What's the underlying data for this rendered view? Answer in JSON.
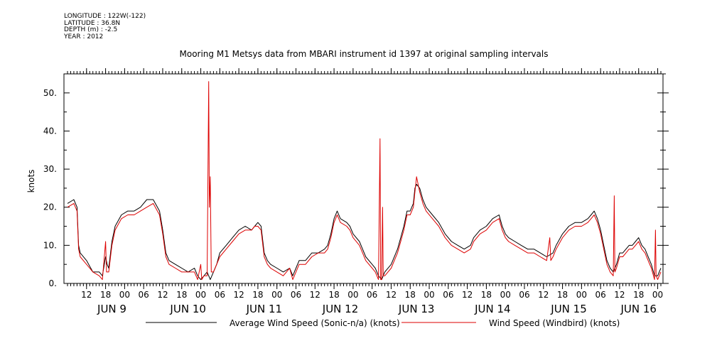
{
  "header": {
    "longitude": "LONGITUDE : 122W(-122)",
    "latitude": "LATITUDE : 36.8N",
    "depth": "DEPTH (m) : -2.5",
    "year": "YEAR : 2012"
  },
  "chart_data": {
    "type": "line",
    "title": "Mooring M1 Metsys data from MBARI instrument id 1397 at original sampling intervals",
    "ylabel": "knots",
    "ylim": [
      0,
      55
    ],
    "xlim_hours": [
      0,
      187
    ],
    "yticks": [
      0.0,
      10.0,
      20.0,
      30.0,
      40.0,
      50.0
    ],
    "yticklabels": [
      "0.",
      "10.",
      "20.",
      "30.",
      "40.",
      "50."
    ],
    "hour_ticks": [
      {
        "h": 6,
        "label": "12"
      },
      {
        "h": 12,
        "label": "18"
      },
      {
        "h": 18,
        "label": "00"
      },
      {
        "h": 24,
        "label": "06"
      },
      {
        "h": 30,
        "label": "12"
      },
      {
        "h": 36,
        "label": "18"
      },
      {
        "h": 42,
        "label": "00"
      },
      {
        "h": 48,
        "label": "06"
      },
      {
        "h": 54,
        "label": "12"
      },
      {
        "h": 60,
        "label": "18"
      },
      {
        "h": 66,
        "label": "00"
      },
      {
        "h": 72,
        "label": "06"
      },
      {
        "h": 78,
        "label": "12"
      },
      {
        "h": 84,
        "label": "18"
      },
      {
        "h": 90,
        "label": "00"
      },
      {
        "h": 96,
        "label": "06"
      },
      {
        "h": 102,
        "label": "12"
      },
      {
        "h": 108,
        "label": "18"
      },
      {
        "h": 114,
        "label": "00"
      },
      {
        "h": 120,
        "label": "06"
      },
      {
        "h": 126,
        "label": "12"
      },
      {
        "h": 132,
        "label": "18"
      },
      {
        "h": 138,
        "label": "00"
      },
      {
        "h": 144,
        "label": "06"
      },
      {
        "h": 150,
        "label": "12"
      },
      {
        "h": 156,
        "label": "18"
      },
      {
        "h": 162,
        "label": "00"
      },
      {
        "h": 168,
        "label": "06"
      },
      {
        "h": 174,
        "label": "12"
      },
      {
        "h": 180,
        "label": "18"
      },
      {
        "h": 186,
        "label": "00"
      }
    ],
    "date_labels": [
      {
        "h": 14,
        "label": "JUN  9"
      },
      {
        "h": 38,
        "label": "JUN 10"
      },
      {
        "h": 62,
        "label": "JUN 11"
      },
      {
        "h": 86,
        "label": "JUN 12"
      },
      {
        "h": 110,
        "label": "JUN 13"
      },
      {
        "h": 134,
        "label": "JUN 14"
      },
      {
        "h": 158,
        "label": "JUN 15"
      },
      {
        "h": 180,
        "label": "JUN 16"
      }
    ],
    "series": [
      {
        "name": "Average Wind Speed (Sonic-n/a) (knots)",
        "color": "#000000",
        "points": [
          [
            0,
            21
          ],
          [
            2,
            22
          ],
          [
            3,
            20
          ],
          [
            3.5,
            10
          ],
          [
            4,
            8
          ],
          [
            6,
            6
          ],
          [
            8,
            3
          ],
          [
            10,
            3
          ],
          [
            11,
            2
          ],
          [
            12,
            7
          ],
          [
            12.5,
            5
          ],
          [
            13,
            4
          ],
          [
            14,
            11
          ],
          [
            15,
            15
          ],
          [
            17,
            18
          ],
          [
            19,
            19
          ],
          [
            21,
            19
          ],
          [
            23,
            20
          ],
          [
            25,
            22
          ],
          [
            27,
            22
          ],
          [
            29,
            19
          ],
          [
            30,
            14
          ],
          [
            31,
            8
          ],
          [
            32,
            6
          ],
          [
            34,
            5
          ],
          [
            36,
            4
          ],
          [
            38,
            3
          ],
          [
            40,
            4
          ],
          [
            41,
            2
          ],
          [
            42,
            1
          ],
          [
            43,
            2
          ],
          [
            44,
            3
          ],
          [
            45,
            1
          ],
          [
            46,
            3
          ],
          [
            47,
            5
          ],
          [
            48,
            8
          ],
          [
            50,
            10
          ],
          [
            52,
            12
          ],
          [
            54,
            14
          ],
          [
            56,
            15
          ],
          [
            58,
            14
          ],
          [
            59,
            15
          ],
          [
            60,
            16
          ],
          [
            61,
            15
          ],
          [
            62,
            8
          ],
          [
            63,
            6
          ],
          [
            64,
            5
          ],
          [
            66,
            4
          ],
          [
            68,
            3
          ],
          [
            70,
            4
          ],
          [
            71,
            2
          ],
          [
            72,
            4
          ],
          [
            73,
            6
          ],
          [
            75,
            6
          ],
          [
            77,
            8
          ],
          [
            79,
            8
          ],
          [
            81,
            9
          ],
          [
            82,
            10
          ],
          [
            83,
            13
          ],
          [
            84,
            17
          ],
          [
            85,
            19
          ],
          [
            86,
            17
          ],
          [
            88,
            16
          ],
          [
            89,
            15
          ],
          [
            90,
            13
          ],
          [
            92,
            11
          ],
          [
            94,
            7
          ],
          [
            96,
            5
          ],
          [
            97,
            4
          ],
          [
            98,
            2
          ],
          [
            99,
            1
          ],
          [
            100,
            3
          ],
          [
            102,
            5
          ],
          [
            104,
            9
          ],
          [
            105,
            12
          ],
          [
            106,
            15
          ],
          [
            107,
            19
          ],
          [
            108,
            19
          ],
          [
            109,
            21
          ],
          [
            109.5,
            25
          ],
          [
            110,
            26
          ],
          [
            111,
            25
          ],
          [
            112,
            22
          ],
          [
            113,
            20
          ],
          [
            115,
            18
          ],
          [
            117,
            16
          ],
          [
            119,
            13
          ],
          [
            121,
            11
          ],
          [
            123,
            10
          ],
          [
            125,
            9
          ],
          [
            127,
            10
          ],
          [
            128,
            12
          ],
          [
            130,
            14
          ],
          [
            132,
            15
          ],
          [
            134,
            17
          ],
          [
            136,
            18
          ],
          [
            137,
            15
          ],
          [
            138,
            13
          ],
          [
            139,
            12
          ],
          [
            141,
            11
          ],
          [
            143,
            10
          ],
          [
            145,
            9
          ],
          [
            147,
            9
          ],
          [
            149,
            8
          ],
          [
            151,
            7
          ],
          [
            153,
            8
          ],
          [
            154,
            10
          ],
          [
            156,
            13
          ],
          [
            158,
            15
          ],
          [
            160,
            16
          ],
          [
            162,
            16
          ],
          [
            164,
            17
          ],
          [
            165,
            18
          ],
          [
            166,
            19
          ],
          [
            167,
            17
          ],
          [
            168,
            14
          ],
          [
            169,
            10
          ],
          [
            170,
            6
          ],
          [
            171,
            4
          ],
          [
            172,
            3
          ],
          [
            173,
            5
          ],
          [
            174,
            8
          ],
          [
            175,
            8
          ],
          [
            176,
            9
          ],
          [
            177,
            10
          ],
          [
            178,
            10
          ],
          [
            179,
            11
          ],
          [
            180,
            12
          ],
          [
            181,
            10
          ],
          [
            182,
            9
          ],
          [
            183,
            7
          ],
          [
            184,
            5
          ],
          [
            185,
            2
          ],
          [
            186,
            2
          ],
          [
            187,
            4
          ]
        ]
      },
      {
        "name": "Wind Speed (Windbird) (knots)",
        "color": "#dd0000",
        "points": [
          [
            0,
            20
          ],
          [
            2,
            21
          ],
          [
            3,
            19
          ],
          [
            3.5,
            9
          ],
          [
            4,
            7
          ],
          [
            6,
            5
          ],
          [
            8,
            3
          ],
          [
            10,
            2
          ],
          [
            11,
            1
          ],
          [
            12,
            11
          ],
          [
            12.3,
            3
          ],
          [
            13,
            3
          ],
          [
            14,
            10
          ],
          [
            15,
            14
          ],
          [
            17,
            17
          ],
          [
            19,
            18
          ],
          [
            21,
            18
          ],
          [
            23,
            19
          ],
          [
            25,
            20
          ],
          [
            27,
            21
          ],
          [
            29,
            18
          ],
          [
            30,
            13
          ],
          [
            31,
            7
          ],
          [
            32,
            5
          ],
          [
            34,
            4
          ],
          [
            36,
            3
          ],
          [
            38,
            3
          ],
          [
            40,
            3
          ],
          [
            41,
            1
          ],
          [
            42,
            5
          ],
          [
            42.3,
            1
          ],
          [
            43,
            2
          ],
          [
            44,
            2
          ],
          [
            44.5,
            53
          ],
          [
            44.7,
            20
          ],
          [
            45,
            28
          ],
          [
            45.3,
            3
          ],
          [
            46,
            3
          ],
          [
            47,
            5
          ],
          [
            48,
            7
          ],
          [
            50,
            9
          ],
          [
            52,
            11
          ],
          [
            54,
            13
          ],
          [
            56,
            14
          ],
          [
            58,
            14
          ],
          [
            59,
            15
          ],
          [
            60,
            15
          ],
          [
            61,
            14
          ],
          [
            62,
            7
          ],
          [
            63,
            5
          ],
          [
            64,
            4
          ],
          [
            66,
            3
          ],
          [
            68,
            2
          ],
          [
            70,
            4
          ],
          [
            71,
            1
          ],
          [
            72,
            3
          ],
          [
            73,
            5
          ],
          [
            75,
            5
          ],
          [
            77,
            7
          ],
          [
            79,
            8
          ],
          [
            81,
            8
          ],
          [
            82,
            9
          ],
          [
            83,
            12
          ],
          [
            84,
            16
          ],
          [
            85,
            18
          ],
          [
            86,
            16
          ],
          [
            88,
            15
          ],
          [
            89,
            14
          ],
          [
            90,
            12
          ],
          [
            92,
            10
          ],
          [
            94,
            6
          ],
          [
            96,
            4
          ],
          [
            97,
            3
          ],
          [
            98,
            1
          ],
          [
            98.5,
            38
          ],
          [
            98.7,
            1
          ],
          [
            99,
            1
          ],
          [
            99.3,
            20
          ],
          [
            99.5,
            2
          ],
          [
            100,
            2
          ],
          [
            102,
            4
          ],
          [
            104,
            8
          ],
          [
            105,
            11
          ],
          [
            106,
            14
          ],
          [
            107,
            18
          ],
          [
            108,
            18
          ],
          [
            109,
            20
          ],
          [
            109.5,
            24
          ],
          [
            110,
            28
          ],
          [
            111,
            24
          ],
          [
            112,
            21
          ],
          [
            113,
            19
          ],
          [
            115,
            17
          ],
          [
            117,
            15
          ],
          [
            119,
            12
          ],
          [
            121,
            10
          ],
          [
            123,
            9
          ],
          [
            125,
            8
          ],
          [
            127,
            9
          ],
          [
            128,
            11
          ],
          [
            130,
            13
          ],
          [
            132,
            14
          ],
          [
            134,
            16
          ],
          [
            136,
            17
          ],
          [
            137,
            14
          ],
          [
            138,
            12
          ],
          [
            139,
            11
          ],
          [
            141,
            10
          ],
          [
            143,
            9
          ],
          [
            145,
            8
          ],
          [
            147,
            8
          ],
          [
            149,
            7
          ],
          [
            151,
            6
          ],
          [
            152,
            12
          ],
          [
            152.3,
            6
          ],
          [
            153,
            7
          ],
          [
            154,
            9
          ],
          [
            156,
            12
          ],
          [
            158,
            14
          ],
          [
            160,
            15
          ],
          [
            162,
            15
          ],
          [
            164,
            16
          ],
          [
            165,
            17
          ],
          [
            166,
            18
          ],
          [
            167,
            16
          ],
          [
            168,
            13
          ],
          [
            169,
            9
          ],
          [
            170,
            5
          ],
          [
            171,
            3
          ],
          [
            172,
            2
          ],
          [
            172.3,
            23
          ],
          [
            172.5,
            3
          ],
          [
            173,
            4
          ],
          [
            174,
            7
          ],
          [
            175,
            7
          ],
          [
            176,
            8
          ],
          [
            177,
            9
          ],
          [
            178,
            9
          ],
          [
            179,
            10
          ],
          [
            180,
            11
          ],
          [
            181,
            9
          ],
          [
            182,
            8
          ],
          [
            183,
            6
          ],
          [
            184,
            4
          ],
          [
            185,
            1
          ],
          [
            185.3,
            14
          ],
          [
            185.5,
            2
          ],
          [
            186,
            1
          ],
          [
            187,
            3
          ]
        ]
      }
    ]
  }
}
